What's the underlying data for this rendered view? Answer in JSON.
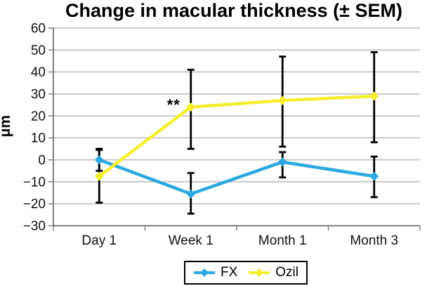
{
  "chart_data": {
    "type": "line",
    "title": "Change in macular thickness (± SEM)",
    "ylabel": "μm",
    "xlabel": "",
    "categories": [
      "Day 1",
      "Week 1",
      "Month 1",
      "Month 3"
    ],
    "ylim": [
      -30,
      60
    ],
    "yticks": [
      60,
      50,
      40,
      30,
      20,
      10,
      0,
      -10,
      -20,
      -30
    ],
    "ytick_labels": [
      "60",
      "50",
      "40",
      "30",
      "20",
      "10",
      "0",
      "−10",
      "−20",
      "−30"
    ],
    "grid": true,
    "legend_position": "bottom-center",
    "error_bar_color": "#000000",
    "gridline_color": "#b9b9b9",
    "axis_color": "#7f7f7f",
    "series": [
      {
        "name": "FX",
        "color": "#2BA9E0",
        "marker": "diamond",
        "values": [
          0,
          -15.5,
          -1,
          -7.5
        ],
        "error_upper": [
          5,
          -6,
          3.5,
          1.5
        ],
        "error_lower": [
          -5,
          -24.5,
          -8,
          -17
        ]
      },
      {
        "name": "Ozil",
        "color": "#F6EE2C",
        "marker": "diamond",
        "values": [
          -7.5,
          24,
          27,
          29
        ],
        "error_upper": [
          4.5,
          41,
          47,
          49
        ],
        "error_lower": [
          -19.5,
          5,
          6,
          8
        ]
      }
    ],
    "annotations": [
      {
        "text": "**",
        "category": "Week 1",
        "y": 24
      }
    ]
  }
}
